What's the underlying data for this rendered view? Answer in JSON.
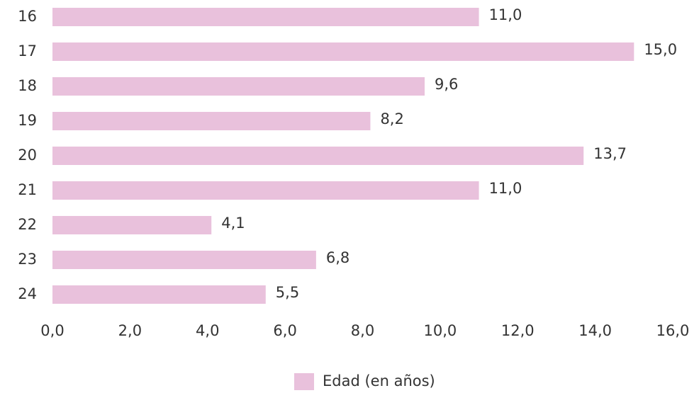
{
  "chart_data": {
    "type": "bar",
    "orientation": "horizontal",
    "categories": [
      "16",
      "17",
      "18",
      "19",
      "20",
      "21",
      "22",
      "23",
      "24"
    ],
    "series": [
      {
        "name": "Edad (en años)",
        "color": "#e9c1dc",
        "values": [
          11.0,
          15.0,
          9.6,
          8.2,
          13.7,
          11.0,
          4.1,
          6.8,
          5.5
        ],
        "value_labels": [
          "11,0",
          "15,0",
          "9,6",
          "8,2",
          "13,7",
          "11,0",
          "4,1",
          "6,8",
          "5,5"
        ]
      }
    ],
    "xlim": [
      0,
      16
    ],
    "xticks": [
      {
        "value": 0,
        "label": "0,0"
      },
      {
        "value": 2,
        "label": "2,0"
      },
      {
        "value": 4,
        "label": "4,0"
      },
      {
        "value": 6,
        "label": "6,0"
      },
      {
        "value": 8,
        "label": "8,0"
      },
      {
        "value": 10,
        "label": "10,0"
      },
      {
        "value": 12,
        "label": "12,0"
      },
      {
        "value": 14,
        "label": "14,0"
      },
      {
        "value": 16,
        "label": "16,0"
      }
    ],
    "grid": false,
    "legend": "bottom"
  }
}
